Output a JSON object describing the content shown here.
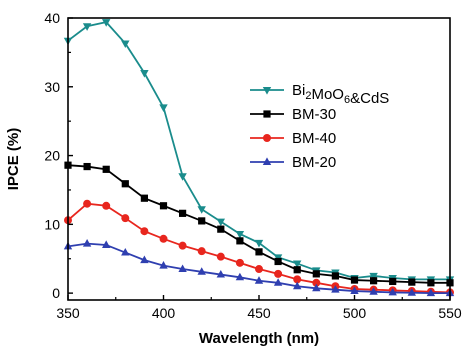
{
  "chart_data": {
    "type": "line",
    "xlabel": "Wavelength (nm)",
    "ylabel": "IPCE (%)",
    "xlim": [
      350,
      550
    ],
    "ylim": [
      -1,
      40
    ],
    "x_ticks": [
      350,
      400,
      450,
      500,
      550
    ],
    "y_ticks": [
      0,
      10,
      20,
      30,
      40
    ],
    "grid": false,
    "legend_position": "right-center",
    "x": [
      350,
      360,
      370,
      380,
      390,
      400,
      410,
      420,
      430,
      440,
      450,
      460,
      470,
      480,
      490,
      500,
      510,
      520,
      530,
      540,
      550
    ],
    "series": [
      {
        "name": "Bi2MoO6&CdS",
        "legend_main": "Bi",
        "legend_sub": "2",
        "legend_rest": "MoO",
        "legend_sub2": "6",
        "legend_tail": "&CdS",
        "marker": "triangle-down",
        "color": "#1a8c8c",
        "values": [
          36.7,
          38.8,
          39.4,
          36.3,
          32.0,
          27.0,
          17.0,
          12.2,
          10.4,
          8.6,
          7.3,
          5.2,
          4.3,
          3.3,
          3.0,
          2.2,
          2.5,
          2.2,
          2.0,
          2.0,
          2.0
        ]
      },
      {
        "name": "BM-30",
        "marker": "square",
        "color": "#000000",
        "values": [
          18.6,
          18.4,
          18.0,
          15.9,
          13.8,
          12.7,
          11.6,
          10.5,
          9.3,
          7.6,
          6.0,
          4.6,
          3.4,
          2.8,
          2.5,
          1.9,
          1.8,
          1.7,
          1.6,
          1.5,
          1.5
        ]
      },
      {
        "name": "BM-40",
        "marker": "circle",
        "color": "#e8261e",
        "values": [
          10.6,
          13.0,
          12.7,
          10.9,
          9.0,
          7.9,
          6.9,
          6.1,
          5.3,
          4.4,
          3.5,
          2.8,
          2.0,
          1.5,
          1.0,
          0.6,
          0.5,
          0.4,
          0.3,
          0.2,
          0.1
        ]
      },
      {
        "name": "BM-20",
        "marker": "triangle-up",
        "color": "#2f3fb0",
        "values": [
          6.8,
          7.2,
          7.0,
          5.9,
          4.8,
          4.0,
          3.5,
          3.1,
          2.7,
          2.3,
          1.8,
          1.5,
          1.0,
          0.7,
          0.5,
          0.3,
          0.2,
          0.1,
          0.05,
          0.0,
          0.0
        ]
      }
    ]
  }
}
